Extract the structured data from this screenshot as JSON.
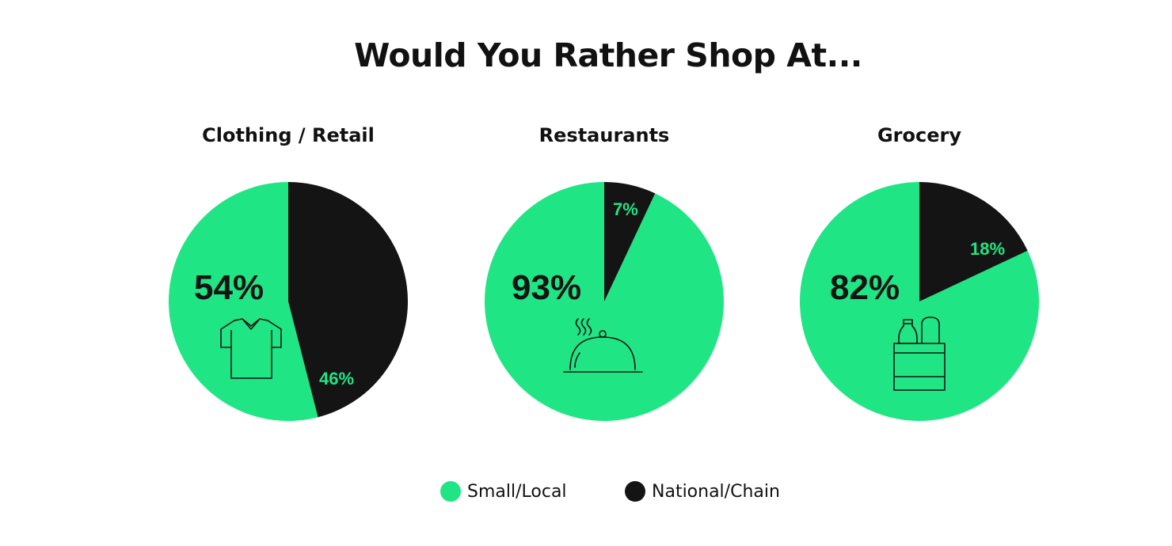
{
  "title": "Would You Rather Shop At...",
  "colors": {
    "small_local": "#20E584",
    "national_chain": "#141414"
  },
  "legend": [
    {
      "label": "Small/Local",
      "color": "#20E584"
    },
    {
      "label": "National/Chain",
      "color": "#141414"
    }
  ],
  "chart_data": [
    {
      "type": "pie",
      "title": "Clothing / Retail",
      "icon": "t-shirt-icon",
      "slices": [
        {
          "label": "Small/Local",
          "value": 54,
          "text": "54%"
        },
        {
          "label": "National/Chain",
          "value": 46,
          "text": "46%"
        }
      ]
    },
    {
      "type": "pie",
      "title": "Restaurants",
      "icon": "food-cloche-icon",
      "slices": [
        {
          "label": "Small/Local",
          "value": 93,
          "text": "93%"
        },
        {
          "label": "National/Chain",
          "value": 7,
          "text": "7%"
        }
      ]
    },
    {
      "type": "pie",
      "title": "Grocery",
      "icon": "grocery-bag-icon",
      "slices": [
        {
          "label": "Small/Local",
          "value": 82,
          "text": "82%"
        },
        {
          "label": "National/Chain",
          "value": 18,
          "text": "18%"
        }
      ]
    }
  ]
}
